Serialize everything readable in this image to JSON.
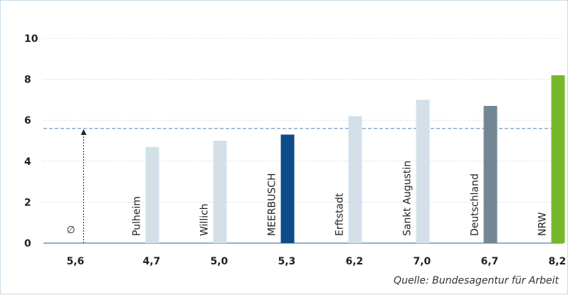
{
  "chart_data": {
    "type": "bar",
    "categories": [
      "Pulheim",
      "Willich",
      "MEERBUSCH",
      "Erftstadt",
      "Sankt Augustin",
      "Deutschland",
      "NRW"
    ],
    "values": [
      4.7,
      5.0,
      5.3,
      6.2,
      7.0,
      6.7,
      8.2
    ],
    "value_labels": [
      "4,7",
      "5,0",
      "5,3",
      "6,2",
      "7,0",
      "6,7",
      "8,2"
    ],
    "colors": [
      "#d3e0ea",
      "#d3e0ea",
      "#0d4c87",
      "#d3e0ea",
      "#d3e0ea",
      "#738693",
      "#77b72c"
    ],
    "average": {
      "symbol": "∅",
      "value": 5.6,
      "label": "5,6"
    },
    "yticks": [
      "0",
      "2",
      "4",
      "6",
      "8",
      "10"
    ],
    "ylim": [
      0,
      10
    ],
    "grid": true,
    "source": "Quelle: Bundesagentur für Arbeit"
  }
}
